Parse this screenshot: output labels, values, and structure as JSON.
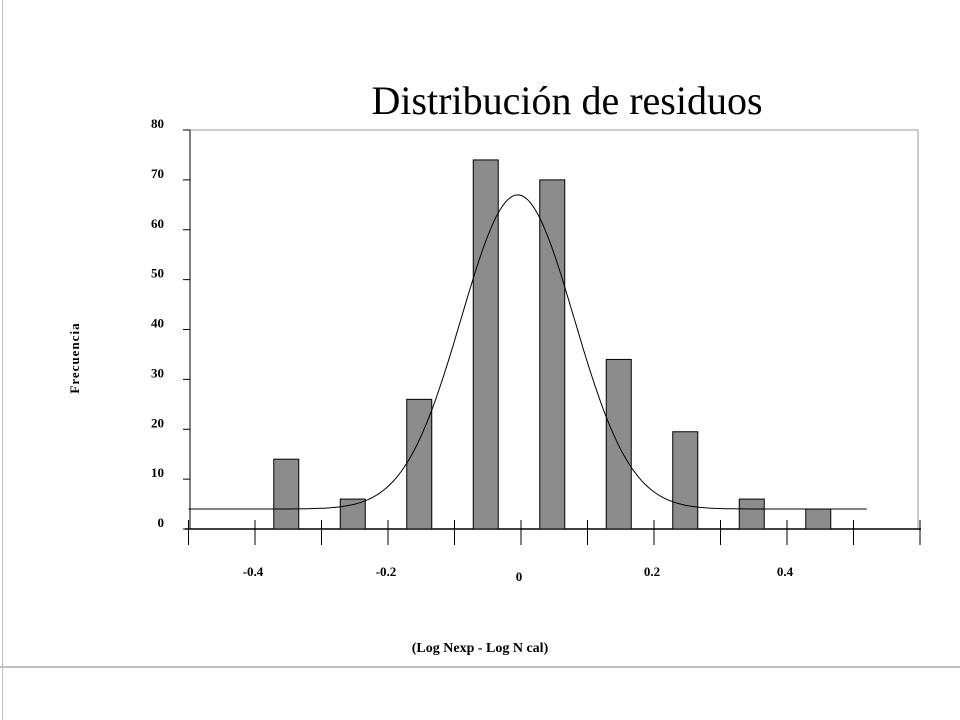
{
  "chart_data": {
    "type": "bar",
    "title": "Distribución de residuos",
    "xlabel": "(Log Nexp - Log N cal)",
    "ylabel": "Frecuencia",
    "ylim": [
      0,
      80
    ],
    "yticks": [
      0,
      10,
      20,
      30,
      40,
      50,
      60,
      70,
      80
    ],
    "xlim": [
      -0.5,
      0.6
    ],
    "xticks": [
      {
        "value": -0.4,
        "label": "-0.4"
      },
      {
        "value": -0.2,
        "label": "-0.2"
      },
      {
        "value": 0,
        "label": "0"
      },
      {
        "value": 0.2,
        "label": "0.2"
      },
      {
        "value": 0.4,
        "label": "0.4"
      }
    ],
    "bars": [
      {
        "x": -0.35,
        "y": 14
      },
      {
        "x": -0.25,
        "y": 6
      },
      {
        "x": -0.15,
        "y": 26
      },
      {
        "x": -0.05,
        "y": 74
      },
      {
        "x": 0.05,
        "y": 70
      },
      {
        "x": 0.15,
        "y": 34
      },
      {
        "x": 0.25,
        "y": 19.5
      },
      {
        "x": 0.35,
        "y": 6
      },
      {
        "x": 0.45,
        "y": 4
      }
    ],
    "curve": {
      "type": "normal",
      "peak": 67,
      "mean": -0.005,
      "sd": 0.085,
      "baseline": 4,
      "x_range": [
        -0.5,
        0.52
      ]
    },
    "grid": false,
    "colors": {
      "bar": "#8c8c8c",
      "line": "#000000"
    }
  }
}
